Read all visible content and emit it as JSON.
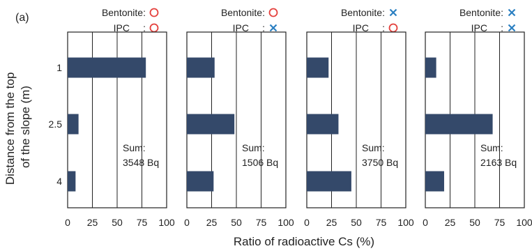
{
  "figure_label": "(a)",
  "shared_ylabel": "Distance from the top of the slope (m)",
  "shared_ylabel_lines": [
    "Distance from the top",
    "of the slope (m)"
  ],
  "shared_xlabel": "Ratio of radioactive Cs (%)",
  "condition_labels": {
    "bentonite": "Bentonite:",
    "ipc": "IPC",
    "ipc_colon": ":"
  },
  "symbols": {
    "present": "circle",
    "absent": "cross"
  },
  "colors": {
    "bar": "#34496a",
    "circle": "#e4403c",
    "cross": "#2a7fc1",
    "grid": "#222222"
  },
  "chart_data": [
    {
      "type": "bar",
      "orientation": "horizontal",
      "bentonite": "present",
      "ipc": "present",
      "categories": [
        "1",
        "2.5",
        "4"
      ],
      "values": [
        79,
        11,
        8
      ],
      "sum_label": "Sum:",
      "sum_value": "3548 Bq",
      "xlim": [
        0,
        100
      ],
      "xticks": [
        "0",
        "25",
        "50",
        "75",
        "100"
      ],
      "grid": "vertical"
    },
    {
      "type": "bar",
      "orientation": "horizontal",
      "bentonite": "present",
      "ipc": "absent",
      "categories": [
        "1",
        "2.5",
        "4"
      ],
      "values": [
        28,
        48,
        27
      ],
      "sum_label": "Sum:",
      "sum_value": "1506 Bq",
      "xlim": [
        0,
        100
      ],
      "xticks": [
        "0",
        "25",
        "50",
        "75",
        "100"
      ],
      "grid": "vertical"
    },
    {
      "type": "bar",
      "orientation": "horizontal",
      "bentonite": "absent",
      "ipc": "present",
      "categories": [
        "1",
        "2.5",
        "4"
      ],
      "values": [
        22,
        32,
        45
      ],
      "sum_label": "Sum:",
      "sum_value": "3750 Bq",
      "xlim": [
        0,
        100
      ],
      "xticks": [
        "0",
        "25",
        "50",
        "75",
        "100"
      ],
      "grid": "vertical"
    },
    {
      "type": "bar",
      "orientation": "horizontal",
      "bentonite": "absent",
      "ipc": "absent",
      "categories": [
        "1",
        "2.5",
        "4"
      ],
      "values": [
        11,
        68,
        19
      ],
      "sum_label": "Sum:",
      "sum_value": "2163 Bq",
      "xlim": [
        0,
        100
      ],
      "xticks": [
        "0",
        "25",
        "50",
        "75",
        "100"
      ],
      "grid": "vertical"
    }
  ]
}
